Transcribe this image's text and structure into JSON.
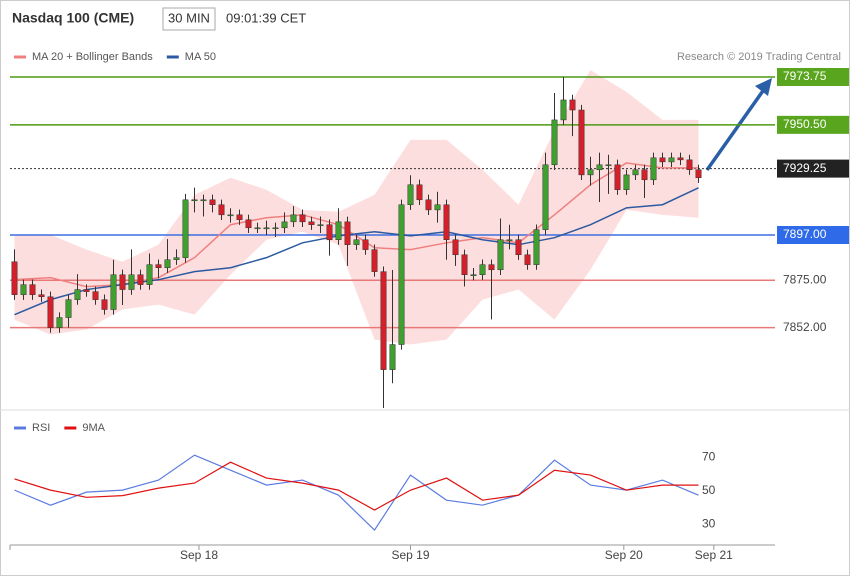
{
  "header": {
    "title": "Nasdaq 100 (CME)",
    "interval": "30 MIN",
    "time": "09:01:39 CET",
    "credit": "Research © 2019 Trading Central"
  },
  "chart_data": [
    {
      "type": "candlestick",
      "xlim": [
        -0.5,
        84.5
      ],
      "ylim": [
        7812,
        7982
      ],
      "up_color": "#3f9f2f",
      "down_color": "#d3202a",
      "candles": {
        "x": [
          0,
          1,
          2,
          3,
          4,
          5,
          6,
          7,
          8,
          9,
          10,
          11,
          12,
          13,
          14,
          15,
          16,
          17,
          18,
          19,
          20,
          21,
          22,
          23,
          24,
          25,
          26,
          27,
          28,
          29,
          30,
          31,
          32,
          33,
          34,
          35,
          36,
          37,
          38,
          39,
          40,
          41,
          42,
          43,
          44,
          45,
          46,
          47,
          48,
          49,
          50,
          51,
          52,
          53,
          54,
          55,
          56,
          57,
          58,
          59,
          60,
          61,
          62,
          63,
          64,
          65,
          66,
          67,
          68,
          69,
          70,
          71,
          72,
          73,
          74,
          75,
          76
        ],
        "open": [
          7884.0,
          7868.0,
          7872.9,
          7868.0,
          7867.0,
          7852.0,
          7856.9,
          7865.6,
          7870.5,
          7869.5,
          7865.6,
          7860.8,
          7877.7,
          7870.5,
          7877.7,
          7872.9,
          7882.6,
          7881.1,
          7885.0,
          7886.0,
          7914.1,
          7914.1,
          7914.1,
          7911.7,
          7906.8,
          7906.8,
          7904.4,
          7900.5,
          7900.5,
          7900.5,
          7900.5,
          7903.4,
          7906.8,
          7903.4,
          7902.0,
          7902.0,
          7894.7,
          7903.4,
          7892.3,
          7894.7,
          7889.9,
          7879.2,
          7831.6,
          7843.8,
          7911.7,
          7921.4,
          7914.1,
          7909.2,
          7911.7,
          7894.7,
          7887.4,
          7877.7,
          7877.7,
          7882.6,
          7880.1,
          7894.7,
          7894.7,
          7887.4,
          7882.6,
          7899.6,
          7931.1,
          7952.9,
          7962.6,
          7957.7,
          7926.2,
          7928.7,
          7931.1,
          7931.1,
          7919.0,
          7926.2,
          7928.7,
          7923.8,
          7934.5,
          7932.5,
          7934.5,
          7933.5,
          7928.7
        ],
        "high": [
          7890.0,
          7875.4,
          7875.4,
          7870.5,
          7869.5,
          7859.4,
          7868.1,
          7878.0,
          7873.0,
          7872.0,
          7868.1,
          7885.0,
          7880.2,
          7890.0,
          7880.2,
          7888.0,
          7885.1,
          7895.0,
          7890.0,
          7917.0,
          7920.0,
          7916.6,
          7916.6,
          7914.2,
          7910.0,
          7909.3,
          7906.9,
          7903.0,
          7904.0,
          7903.0,
          7908.0,
          7911.0,
          7909.3,
          7905.9,
          7906.0,
          7904.5,
          7910.0,
          7905.9,
          7897.2,
          7897.2,
          7892.4,
          7881.7,
          7880.0,
          7914.2,
          7926.0,
          7923.9,
          7916.6,
          7918.0,
          7914.2,
          7897.2,
          7889.9,
          7881.0,
          7885.1,
          7885.1,
          7905.0,
          7902.0,
          7897.2,
          7889.9,
          7902.1,
          7937.0,
          7966.0,
          7973.75,
          7965.1,
          7960.2,
          7935.0,
          7937.0,
          7936.0,
          7933.6,
          7928.7,
          7931.2,
          7931.2,
          7937.0,
          7937.0,
          7937.0,
          7937.0,
          7936.0,
          7931.2
        ],
        "low": [
          7865.5,
          7865.5,
          7865.5,
          7864.5,
          7849.5,
          7849.5,
          7852.0,
          7863.1,
          7867.0,
          7863.1,
          7858.3,
          7858.3,
          7863.0,
          7868.0,
          7870.4,
          7870.4,
          7876.0,
          7878.6,
          7882.5,
          7883.5,
          7908.0,
          7906.0,
          7908.0,
          7904.3,
          7903.0,
          7901.9,
          7898.0,
          7898.0,
          7897.0,
          7896.0,
          7898.0,
          7900.9,
          7900.9,
          7899.5,
          7898.0,
          7887.0,
          7892.2,
          7882.0,
          7889.8,
          7887.4,
          7876.7,
          7813.0,
          7825.0,
          7841.3,
          7909.2,
          7911.6,
          7906.7,
          7903.0,
          7885.0,
          7882.0,
          7872.0,
          7875.0,
          7875.2,
          7856.0,
          7877.6,
          7890.0,
          7884.9,
          7880.1,
          7880.1,
          7897.1,
          7928.6,
          7950.4,
          7945.0,
          7923.7,
          7921.0,
          7913.0,
          7917.0,
          7916.5,
          7916.5,
          7923.7,
          7915.0,
          7921.3,
          7930.0,
          7930.0,
          7931.0,
          7926.2,
          7922.3
        ],
        "close": [
          7868.0,
          7872.9,
          7868.0,
          7867.0,
          7852.0,
          7856.9,
          7865.6,
          7870.5,
          7869.5,
          7865.6,
          7860.8,
          7877.7,
          7870.5,
          7877.7,
          7872.9,
          7882.6,
          7881.1,
          7885.0,
          7886.0,
          7914.1,
          7914.1,
          7914.1,
          7911.7,
          7906.8,
          7906.8,
          7904.4,
          7900.5,
          7900.5,
          7900.5,
          7900.5,
          7903.4,
          7906.8,
          7903.4,
          7902.0,
          7902.0,
          7894.7,
          7903.4,
          7892.3,
          7894.7,
          7889.9,
          7879.2,
          7831.6,
          7843.8,
          7911.7,
          7921.4,
          7914.1,
          7909.2,
          7911.7,
          7894.7,
          7887.4,
          7877.7,
          7877.7,
          7882.6,
          7880.1,
          7894.7,
          7894.7,
          7887.4,
          7882.6,
          7899.6,
          7931.1,
          7952.9,
          7962.6,
          7957.7,
          7926.2,
          7928.7,
          7931.1,
          7931.1,
          7919.0,
          7926.2,
          7928.7,
          7923.8,
          7934.5,
          7932.5,
          7934.5,
          7933.5,
          7928.7,
          7924.8
        ]
      },
      "line_x": [
        0,
        4,
        8,
        12,
        16,
        20,
        24,
        28,
        32,
        36,
        40,
        44,
        48,
        52,
        56,
        60,
        64,
        68,
        72,
        76
      ],
      "bollinger": {
        "color": "#fdd6d6",
        "upper": [
          7897.1,
          7897.1,
          7889.9,
          7884.0,
          7892.3,
          7916.5,
          7924.8,
          7919.0,
          7909.2,
          7908.3,
          7916.5,
          7943.2,
          7943.2,
          7928.7,
          7911.7,
          7948.0,
          7977.1,
          7966.5,
          7952.9,
          7952.9
        ],
        "lower": [
          7855.9,
          7848.6,
          7851.1,
          7860.8,
          7863.2,
          7858.3,
          7877.7,
          7894.7,
          7898.6,
          7892.3,
          7846.2,
          7843.8,
          7846.2,
          7865.6,
          7870.5,
          7855.9,
          7880.1,
          7909.2,
          7906.8,
          7905.4
        ]
      },
      "series": [
        {
          "name": "MA 20 + Bollinger Bands",
          "color": "#f08080",
          "values": [
            7875.3,
            7876.3,
            7871.9,
            7872.9,
            7876.3,
            7886.0,
            7902.0,
            7905.4,
            7906.8,
            7902.0,
            7890.8,
            7889.9,
            7893.2,
            7895.7,
            7893.2,
            7906.8,
            7921.4,
            7932.0,
            7929.6,
            7929.6
          ]
        },
        {
          "name": "MA 50",
          "color": "#2c5aa0",
          "values": [
            7858.3,
            7865.6,
            7870.5,
            7872.9,
            7875.3,
            7879.2,
            7881.1,
            7886.0,
            7893.2,
            7896.6,
            7898.6,
            7896.6,
            7898.6,
            7894.7,
            7892.3,
            7895.7,
            7902.0,
            7910.2,
            7911.7,
            7919.9
          ]
        }
      ],
      "levels": [
        {
          "value": 7973.75,
          "color": "#4c9a12",
          "tag_color": "#5aa51e"
        },
        {
          "value": 7950.5,
          "label": "7950.50",
          "color": "#4c9a12",
          "tag_color": "#5aa51e"
        },
        {
          "value": 7929.25,
          "color": "#333333",
          "tag_color": "#222222",
          "dotted": true
        },
        {
          "value": 7897,
          "label": "7897.00",
          "color": "#3d6fe0",
          "tag_color": "#2f6be8"
        },
        {
          "value": 7875,
          "label": "7875.00",
          "color": "#e87878"
        },
        {
          "value": 7852,
          "label": "7852.00",
          "color": "#e87878"
        }
      ]
    },
    {
      "type": "line",
      "xlim": [
        -0.5,
        84.5
      ],
      "ylim": [
        17.5,
        97
      ],
      "yticks": [
        30,
        50,
        70
      ],
      "x": [
        0,
        4,
        8,
        12,
        16,
        20,
        24,
        28,
        32,
        36,
        40,
        44,
        48,
        52,
        56,
        60,
        64,
        68,
        72,
        76
      ],
      "xticks": [
        {
          "value": 20.5,
          "label": "Sep 18"
        },
        {
          "value": 44,
          "label": "Sep 19"
        },
        {
          "value": 67.7,
          "label": "Sep 20"
        },
        {
          "value": 77.7,
          "label": "Sep 21"
        }
      ],
      "series": [
        {
          "name": "RSI",
          "color": "#5b7be0",
          "values": [
            50.3,
            41.3,
            49.1,
            50.3,
            56.3,
            71.2,
            62.2,
            53.3,
            56.3,
            47.3,
            26.4,
            59.3,
            44.3,
            41.3,
            47.3,
            68.2,
            53.3,
            50.3,
            56.3,
            47.3
          ]
        },
        {
          "name": "9MA",
          "color": "#e01010",
          "values": [
            57.0,
            50.3,
            46.0,
            47.0,
            51.5,
            54.5,
            67.0,
            57.5,
            54.5,
            50.3,
            38.4,
            50.3,
            57.5,
            44.3,
            47.3,
            62.2,
            59.3,
            50.3,
            53.3,
            53.3
          ]
        }
      ]
    }
  ]
}
